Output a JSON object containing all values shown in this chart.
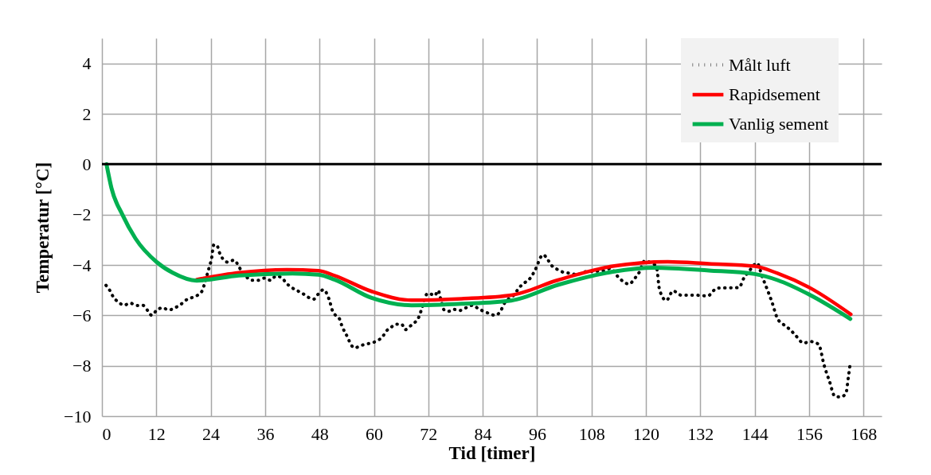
{
  "chart_data": {
    "type": "line",
    "xlabel": "Tid [timer]",
    "ylabel": "Temperatur [°C]",
    "xlim": [
      0,
      172
    ],
    "xticks": [
      0,
      12,
      24,
      36,
      48,
      60,
      72,
      84,
      96,
      108,
      120,
      132,
      144,
      156,
      168
    ],
    "ylim": [
      -10,
      5
    ],
    "yticks": [
      -10,
      -8,
      -6,
      -4,
      -2,
      0,
      2,
      4
    ],
    "grid": true,
    "legend": "top right",
    "ref_lines": [
      {
        "axis": "y",
        "value": 0,
        "color": "#000000"
      }
    ],
    "series": [
      {
        "name": "Målt luft",
        "color": "#000000",
        "line_style": "dotted",
        "x": [
          0.9,
          1.8,
          2.5,
          3.6,
          4.9,
          6.2,
          7.6,
          9.0,
          10.1,
          11.0,
          12.0,
          13.4,
          14.7,
          16.1,
          17.3,
          18.5,
          19.8,
          21.1,
          22.1,
          22.6,
          23.4,
          23.8,
          24.2,
          24.4,
          24.7,
          25.4,
          25.9,
          26.6,
          27.8,
          29.1,
          30.1,
          30.8,
          31.8,
          33.0,
          34.5,
          35.9,
          37.2,
          38.4,
          39.7,
          40.6,
          41.8,
          43.1,
          44.5,
          45.6,
          46.7,
          47.7,
          48.9,
          49.8,
          50.3,
          50.7,
          51.4,
          52.4,
          52.9,
          53.5,
          54.2,
          54.8,
          55.8,
          57.1,
          58.3,
          59.6,
          60.8,
          61.9,
          62.8,
          63.7,
          64.8,
          66.1,
          66.9,
          67.8,
          69.0,
          69.9,
          70.4,
          70.9,
          71.2,
          72.1,
          73.4,
          74.2,
          74.6,
          75.0,
          75.5,
          76.5,
          77.5,
          78.9,
          80.3,
          81.8,
          83.0,
          84.2,
          85.5,
          86.7,
          87.9,
          88.8,
          89.7,
          90.9,
          92.1,
          93.3,
          94.5,
          95.3,
          96.0,
          96.6,
          97.4,
          98.3,
          99.2,
          100.5,
          101.8,
          103.3,
          104.8,
          106.6,
          109.1,
          110.9,
          112.1,
          114.2,
          116.3,
          117.5,
          118.6,
          119.7,
          121.2,
          122.3,
          123.0,
          124.5,
          126.0,
          127.8,
          130.9,
          133.6,
          135.7,
          140.5,
          141.7,
          142.7,
          143.6,
          144.5,
          145.7,
          146.9,
          147.8,
          149.0,
          150.2,
          151.7,
          152.9,
          154.8,
          156.3,
          158.1,
          159.3,
          160.5,
          161.7,
          162.9,
          164.1,
          164.7,
          165.0
        ],
        "values": [
          -4.81,
          -5.03,
          -5.27,
          -5.47,
          -5.6,
          -5.51,
          -5.61,
          -5.6,
          -5.81,
          -6.0,
          -5.81,
          -5.7,
          -5.79,
          -5.7,
          -5.58,
          -5.4,
          -5.3,
          -5.2,
          -5.03,
          -4.77,
          -4.26,
          -4.0,
          -3.74,
          -3.45,
          -3.19,
          -3.23,
          -3.5,
          -3.74,
          -3.89,
          -3.81,
          -4.02,
          -4.26,
          -4.46,
          -4.61,
          -4.61,
          -4.52,
          -4.61,
          -4.44,
          -4.51,
          -4.71,
          -4.89,
          -5.02,
          -5.16,
          -5.29,
          -5.36,
          -5.16,
          -4.98,
          -5.22,
          -5.47,
          -5.74,
          -5.97,
          -6.14,
          -6.4,
          -6.64,
          -6.87,
          -7.12,
          -7.29,
          -7.2,
          -7.14,
          -7.09,
          -7.0,
          -6.85,
          -6.61,
          -6.49,
          -6.35,
          -6.35,
          -6.57,
          -6.45,
          -6.29,
          -6.07,
          -5.82,
          -5.54,
          -5.29,
          -5.12,
          -5.22,
          -5.01,
          -5.26,
          -5.53,
          -5.79,
          -5.84,
          -5.76,
          -5.81,
          -5.7,
          -5.6,
          -5.73,
          -5.84,
          -5.93,
          -6.0,
          -5.84,
          -5.52,
          -5.35,
          -5.19,
          -4.89,
          -4.7,
          -4.52,
          -4.29,
          -4.03,
          -3.75,
          -3.6,
          -3.78,
          -4.02,
          -4.18,
          -4.29,
          -4.33,
          -4.38,
          -4.27,
          -4.25,
          -4.22,
          -4.14,
          -4.54,
          -4.76,
          -4.54,
          -4.27,
          -3.84,
          -3.92,
          -4.05,
          -4.98,
          -5.41,
          -5.03,
          -5.2,
          -5.2,
          -5.23,
          -4.92,
          -4.9,
          -4.49,
          -4.27,
          -4.05,
          -3.92,
          -4.49,
          -5.03,
          -5.47,
          -6.12,
          -6.34,
          -6.55,
          -6.77,
          -7.1,
          -7.04,
          -7.15,
          -7.97,
          -8.62,
          -9.22,
          -9.24,
          -9.11,
          -8.4,
          -8.0
        ]
      },
      {
        "name": "Rapidsement",
        "color": "#ff0000",
        "line_style": "solid",
        "x": [
          20.9,
          30.2,
          40.8,
          47.8,
          51.3,
          59.5,
          68.3,
          79.4,
          90.3,
          100.6,
          112.7,
          124.8,
          133.9,
          144,
          149,
          156.3,
          165.2
        ],
        "values": [
          -4.58,
          -4.31,
          -4.19,
          -4.23,
          -4.42,
          -5.05,
          -5.4,
          -5.34,
          -5.2,
          -4.6,
          -4.05,
          -3.87,
          -3.95,
          -4.05,
          -4.33,
          -4.92,
          -5.96
        ]
      },
      {
        "name": "Vanlig sement",
        "color": "#00b050",
        "line_style": "solid",
        "x": [
          1,
          2.1,
          4.5,
          7.4,
          12.1,
          15.6,
          20.9,
          30.2,
          42,
          47.8,
          51.3,
          59.5,
          68.3,
          79.4,
          90.3,
          100.6,
          112.7,
          121.8,
          133.9,
          144,
          149,
          156.3,
          165.1
        ],
        "values": [
          0,
          -0.95,
          -2.0,
          -2.95,
          -3.89,
          -4.31,
          -4.62,
          -4.42,
          -4.34,
          -4.39,
          -4.58,
          -5.31,
          -5.6,
          -5.54,
          -5.41,
          -4.79,
          -4.27,
          -4.11,
          -4.22,
          -4.36,
          -4.6,
          -5.2,
          -6.14
        ]
      }
    ]
  }
}
